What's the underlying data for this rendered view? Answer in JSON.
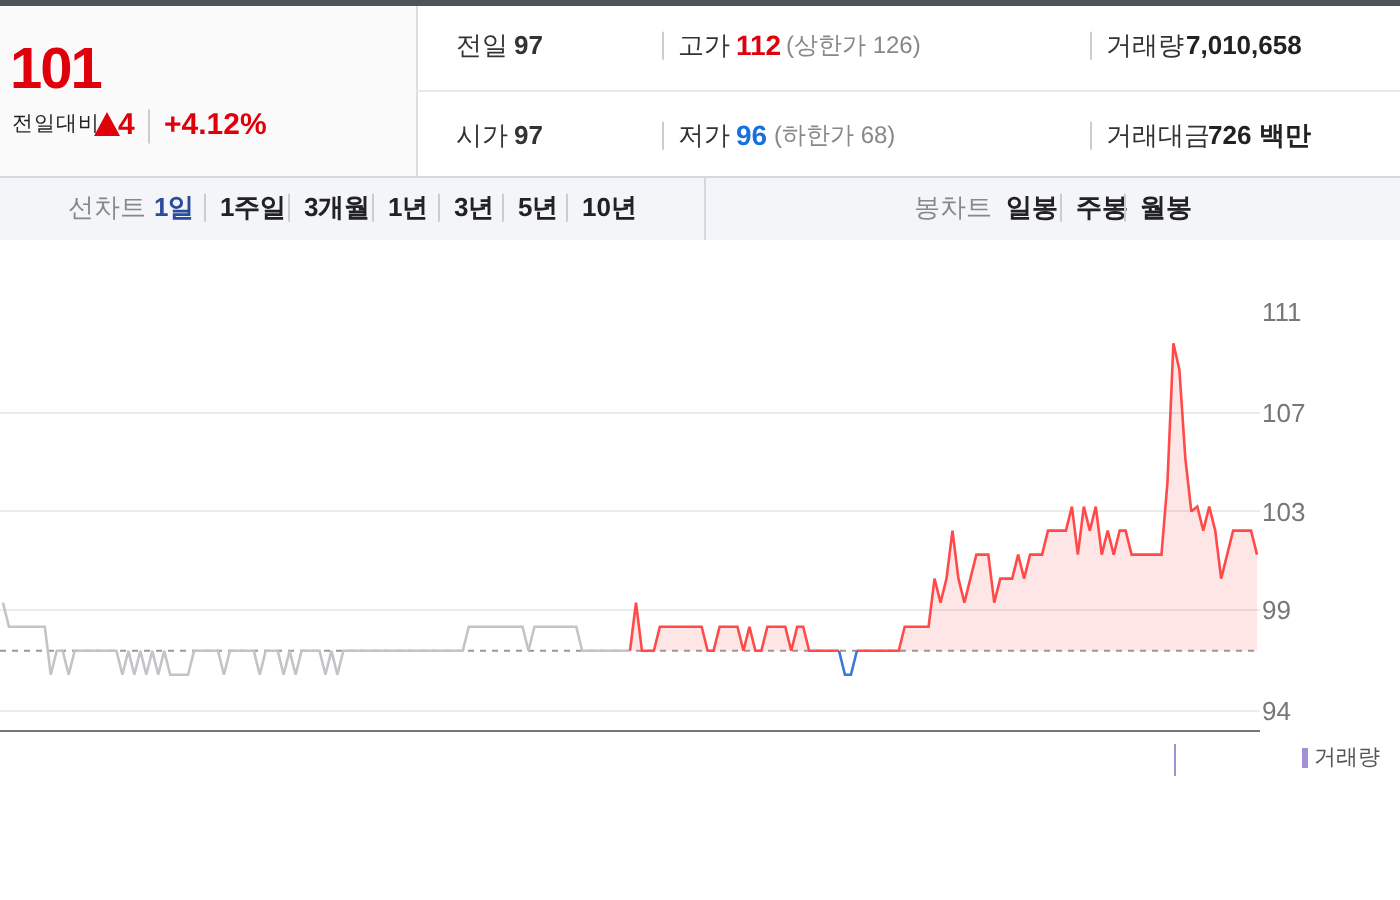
{
  "chart_data": [
    {
      "type": "other",
      "title": "101",
      "annotations": [
        "전일대비",
        "4",
        "+4.12%",
        "전일",
        "97",
        "고가",
        "112",
        "(상한가 126)",
        "거래량",
        "7,010,658",
        "시가",
        "97",
        "저가",
        "96",
        "(하한가 68)",
        "거래대금",
        "726 백만",
        "선차트",
        "1일",
        "1주일",
        "3개월",
        "1년",
        "3년",
        "5년",
        "10년",
        "봉차트",
        "일봉",
        "주봉",
        "월봉"
      ]
    },
    {
      "type": "line",
      "categories": [
        null,
        null,
        null,
        null,
        null,
        null,
        null,
        null,
        null,
        null,
        null,
        null,
        null,
        null,
        null,
        null,
        null,
        null,
        null,
        null,
        null,
        null,
        null,
        null,
        null,
        null,
        null,
        null,
        null,
        null,
        null,
        null,
        null,
        null,
        null,
        null,
        null,
        null,
        null,
        null,
        null,
        null,
        null,
        null,
        null,
        null,
        null,
        null,
        null,
        null,
        null,
        null,
        null,
        null,
        null,
        null,
        null,
        null,
        null,
        null,
        null,
        null,
        null,
        null,
        null,
        null,
        null,
        null,
        null,
        null,
        null,
        null,
        null,
        null,
        null,
        null,
        null,
        null,
        null,
        null,
        null,
        null,
        null,
        null,
        null,
        null,
        null,
        null,
        null,
        null,
        null,
        null,
        null,
        null,
        null,
        null,
        null,
        null,
        null,
        null,
        null,
        null,
        null,
        null,
        null,
        null,
        null,
        null,
        null,
        null,
        null,
        null,
        null,
        null,
        null,
        null,
        null,
        null,
        null,
        null,
        null,
        null,
        null,
        null,
        null,
        null,
        null,
        null,
        null,
        null,
        null,
        null,
        null,
        null,
        null,
        null,
        null,
        null,
        null,
        null,
        null,
        null,
        null,
        null,
        null,
        null,
        null,
        null,
        null,
        null,
        null,
        null,
        null,
        null,
        null,
        null,
        null,
        null,
        null,
        null,
        null,
        null,
        null,
        null,
        null,
        null,
        null,
        null,
        null,
        null,
        null,
        null,
        null,
        null,
        null,
        null,
        null,
        null,
        null,
        null,
        null,
        null,
        null,
        null,
        null,
        null,
        null,
        null,
        null,
        null,
        null,
        null,
        null,
        null,
        null,
        null,
        null,
        null,
        null,
        null,
        null,
        null,
        null,
        null,
        null,
        null,
        null,
        null,
        null,
        null,
        null
      ],
      "series": [
        {
          "type": "line",
          "color": "#c4c4c8",
          "values": [
            99,
            98,
            98,
            98,
            98,
            98,
            98,
            98,
            96,
            97,
            97,
            96,
            97,
            97,
            97,
            97,
            97,
            97,
            97,
            97,
            96,
            97,
            96,
            97,
            96,
            97,
            96,
            97,
            96,
            96,
            96,
            96,
            97,
            97,
            97,
            97,
            97,
            96,
            97,
            97,
            97,
            97,
            97,
            96,
            97,
            97,
            97,
            96,
            97,
            96,
            97,
            97,
            97,
            97,
            96,
            97,
            96,
            97,
            97,
            97,
            97,
            97,
            97,
            97,
            97,
            97,
            97,
            97,
            97,
            97,
            97,
            97,
            97,
            97,
            97,
            97,
            97,
            97,
            98,
            98,
            98,
            98,
            98,
            98,
            98,
            98,
            98,
            98,
            97,
            98,
            98,
            98,
            98,
            98,
            98,
            98,
            98,
            97,
            97,
            97,
            97,
            97,
            97,
            97,
            97,
            97,
            null,
            null,
            null,
            null,
            null,
            null,
            null,
            null,
            null,
            null,
            null,
            null,
            null,
            null,
            null,
            null,
            null,
            null,
            null,
            null,
            null,
            null,
            null,
            null,
            null,
            null,
            null,
            null,
            null,
            null,
            null,
            null,
            null,
            null,
            null,
            null,
            null,
            null,
            null,
            null,
            null,
            null,
            null,
            null,
            null,
            null,
            null,
            null,
            null,
            null,
            null,
            null,
            null,
            null,
            null,
            null,
            null,
            null,
            null,
            null,
            null,
            null,
            null,
            null,
            null,
            null,
            null,
            null,
            null,
            null,
            null,
            null,
            null,
            null,
            null,
            null,
            null,
            null,
            null,
            null,
            null,
            null,
            null,
            null,
            null,
            null,
            null,
            null,
            null,
            null,
            null,
            null,
            null,
            null,
            null,
            null,
            null,
            null,
            null,
            null,
            null,
            null,
            null,
            null,
            null
          ]
        },
        {
          "type": "area",
          "color": "#ff4a4a",
          "values": [
            null,
            null,
            null,
            null,
            null,
            null,
            null,
            null,
            null,
            null,
            null,
            null,
            null,
            null,
            null,
            null,
            null,
            null,
            null,
            null,
            null,
            null,
            null,
            null,
            null,
            null,
            null,
            null,
            null,
            null,
            null,
            null,
            null,
            null,
            null,
            null,
            null,
            null,
            null,
            null,
            null,
            null,
            null,
            null,
            null,
            null,
            null,
            null,
            null,
            null,
            null,
            null,
            null,
            null,
            null,
            null,
            null,
            null,
            null,
            null,
            null,
            null,
            null,
            null,
            null,
            null,
            null,
            null,
            null,
            null,
            null,
            null,
            null,
            null,
            null,
            null,
            null,
            null,
            null,
            null,
            null,
            null,
            null,
            null,
            null,
            null,
            null,
            null,
            null,
            null,
            null,
            null,
            null,
            null,
            null,
            null,
            null,
            null,
            null,
            null,
            null,
            null,
            null,
            null,
            null,
            97,
            99,
            97,
            97,
            97,
            98,
            98,
            98,
            98,
            98,
            98,
            98,
            98,
            97,
            97,
            98,
            98,
            98,
            98,
            97,
            98,
            97,
            97,
            98,
            98,
            98,
            98,
            97,
            98,
            98,
            97,
            97,
            97,
            97,
            97,
            97,
            null,
            null,
            97,
            97,
            97,
            97,
            97,
            97,
            97,
            97,
            98,
            98,
            98,
            98,
            98,
            100,
            99,
            100,
            102,
            100,
            99,
            100,
            101,
            101,
            101,
            99,
            100,
            100,
            100,
            101,
            100,
            101,
            101,
            101,
            102,
            102,
            102,
            102,
            103,
            101,
            103,
            102,
            103,
            101,
            102,
            101,
            102,
            102,
            101,
            101,
            101,
            101,
            101,
            101,
            104,
            109.8,
            108.7,
            105,
            102.8,
            103,
            102,
            103,
            102,
            100,
            101,
            102,
            102,
            102,
            102,
            101
          ]
        },
        {
          "type": "line",
          "color": "#3a78d8",
          "values": [
            null,
            null,
            null,
            null,
            null,
            null,
            null,
            null,
            null,
            null,
            null,
            null,
            null,
            null,
            null,
            null,
            null,
            null,
            null,
            null,
            null,
            null,
            null,
            null,
            null,
            null,
            null,
            null,
            null,
            null,
            null,
            null,
            null,
            null,
            null,
            null,
            null,
            null,
            null,
            null,
            null,
            null,
            null,
            null,
            null,
            null,
            null,
            null,
            null,
            null,
            null,
            null,
            null,
            null,
            null,
            null,
            null,
            null,
            null,
            null,
            null,
            null,
            null,
            null,
            null,
            null,
            null,
            null,
            null,
            null,
            null,
            null,
            null,
            null,
            null,
            null,
            null,
            null,
            null,
            null,
            null,
            null,
            null,
            null,
            null,
            null,
            null,
            null,
            null,
            null,
            null,
            null,
            null,
            null,
            null,
            null,
            null,
            null,
            null,
            null,
            null,
            null,
            null,
            null,
            null,
            null,
            null,
            null,
            null,
            null,
            null,
            null,
            null,
            null,
            null,
            null,
            null,
            null,
            null,
            null,
            null,
            null,
            null,
            null,
            null,
            null,
            null,
            null,
            null,
            null,
            null,
            null,
            null,
            null,
            null,
            null,
            null,
            null,
            null,
            null,
            97,
            96,
            96,
            97,
            null,
            null,
            null,
            null,
            null,
            null,
            null,
            null,
            null,
            null,
            null,
            null,
            null,
            null,
            null,
            null,
            null,
            null,
            null,
            null,
            null,
            null,
            null,
            null,
            null,
            null,
            null,
            null,
            null,
            null,
            null,
            null,
            null,
            null,
            null,
            null,
            null,
            null,
            null,
            null,
            null,
            null,
            null,
            null,
            null,
            null,
            null,
            null,
            null,
            null,
            null,
            null,
            null,
            null,
            null,
            null,
            null,
            null,
            null,
            null,
            null,
            null,
            null,
            null,
            null,
            null,
            null
          ]
        }
      ],
      "ylim": [
        93.7,
        111.1
      ],
      "yticks": [
        {
          "value": 94.5,
          "label": "94"
        },
        {
          "value": 98.7,
          "label": "99"
        },
        {
          "value": 102.8,
          "label": "103"
        },
        {
          "value": 106.9,
          "label": "107"
        },
        {
          "value": 111.1,
          "label": "111"
        }
      ],
      "ref_lines": [
        {
          "axis": "y",
          "value": 97,
          "line_style": "dotted",
          "color": "#999999"
        }
      ],
      "grid": "y",
      "tick_labels": "y"
    },
    {
      "type": "other",
      "annotations": [
        "거래량"
      ]
    }
  ]
}
